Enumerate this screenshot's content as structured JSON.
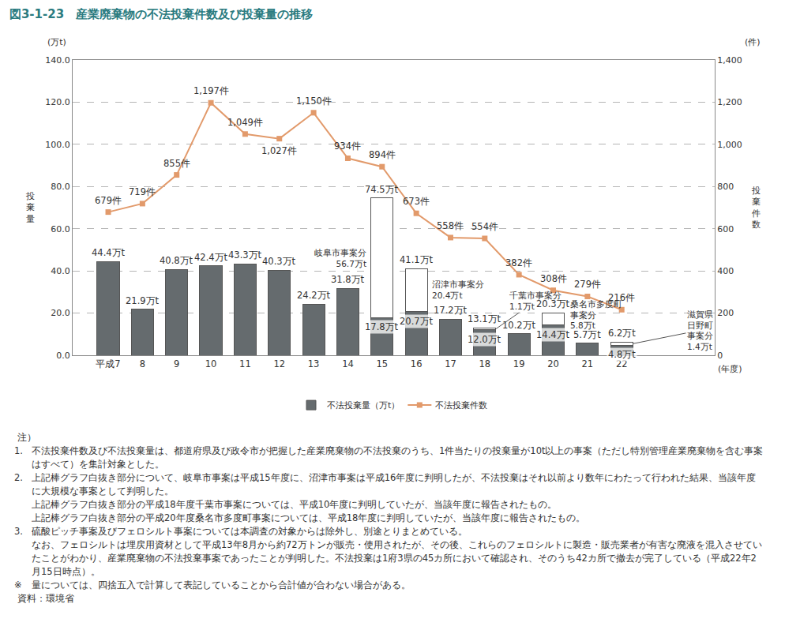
{
  "chart_data": {
    "type": "bar",
    "title": "図3-1-23　産業廃棄物の不法投棄件数及び投棄量の推移",
    "ylabel": "投棄量",
    "y_unit": "(万t)",
    "y2label": "投棄件数",
    "y2_unit": "(件)",
    "x_unit": "(年度)",
    "categories": [
      "平成7",
      "8",
      "9",
      "10",
      "11",
      "12",
      "13",
      "14",
      "15",
      "16",
      "17",
      "18",
      "19",
      "20",
      "21",
      "22"
    ],
    "series": [
      {
        "name": "不法投棄量（万t）",
        "type": "bar",
        "color": "#656b6e",
        "values": [
          44.4,
          21.9,
          40.8,
          42.4,
          43.3,
          40.3,
          24.2,
          31.8,
          17.8,
          20.7,
          17.2,
          12.0,
          10.2,
          14.4,
          5.7,
          4.8
        ],
        "value_labels": [
          "44.4万t",
          "21.9万t",
          "40.8万t",
          "42.4万t",
          "43.3万t",
          "40.3万t",
          "24.2万t",
          "31.8万t",
          "17.8万t",
          "20.7万t",
          "17.2万t",
          "12.0万t",
          "10.2万t",
          "14.4万t",
          "5.7万t",
          "4.8万t"
        ]
      },
      {
        "type": "bar",
        "color": "#ffffff",
        "values": [
          null,
          null,
          null,
          null,
          null,
          null,
          null,
          null,
          56.7,
          20.4,
          null,
          1.1,
          null,
          5.8,
          null,
          1.4
        ],
        "value_labels": [
          null,
          null,
          null,
          null,
          null,
          null,
          null,
          null,
          "56.7万t",
          "20.4万t",
          null,
          "1.1万t",
          null,
          "5.8万t",
          null,
          "1.4万t"
        ],
        "case_labels": [
          null,
          null,
          null,
          null,
          null,
          null,
          null,
          null,
          [
            "岐阜市事案分"
          ],
          [
            "沼津市事案分"
          ],
          null,
          [
            "千葉市事案分"
          ],
          null,
          [
            "桑名市多度町",
            "事案分"
          ],
          null,
          [
            "滋賀県",
            "日野町",
            "事案分"
          ]
        ],
        "total_labels": [
          null,
          null,
          null,
          null,
          null,
          null,
          null,
          null,
          "74.5万t",
          "41.1万t",
          null,
          "13.1万t",
          null,
          "20.3万t",
          null,
          "6.2万t"
        ]
      },
      {
        "name": "不法投棄件数",
        "type": "line",
        "axis": "y2",
        "color": "#e29a6b",
        "marker": "square",
        "values": [
          679,
          719,
          855,
          1197,
          1049,
          1027,
          1150,
          934,
          894,
          673,
          558,
          554,
          382,
          308,
          279,
          216
        ],
        "value_labels": [
          "679件",
          "719件",
          "855件",
          "1,197件",
          "1,049件",
          "1,027件",
          "1,150件",
          "934件",
          "894件",
          "673件",
          "558件",
          "554件",
          "382件",
          "308件",
          "279件",
          "216件"
        ]
      }
    ],
    "ylim": [
      0,
      140
    ],
    "yticks": [
      {
        "value": 0,
        "label": "0.0"
      },
      {
        "value": 20,
        "label": "20.0"
      },
      {
        "value": 40,
        "label": "40.0"
      },
      {
        "value": 60,
        "label": "60.0"
      },
      {
        "value": 80,
        "label": "80.0"
      },
      {
        "value": 100,
        "label": "100.0"
      },
      {
        "value": 120,
        "label": "120.0"
      },
      {
        "value": 140,
        "label": "140.0"
      }
    ],
    "y2lim": [
      0,
      1400
    ],
    "y2ticks": [
      0,
      200,
      400,
      600,
      800,
      {
        "value": 1000,
        "label": "1,000"
      },
      {
        "value": 1200,
        "label": "1,200"
      },
      {
        "value": 1400,
        "label": "1,400"
      }
    ],
    "stacked": true,
    "grid": true,
    "legend": "bottom",
    "data_labels": true
  },
  "notes": {
    "heading": "注）",
    "items": [
      {
        "label": "1.",
        "text": [
          "不法投棄件数及び不法投棄量は、都道府県及び政令市が把握した産業廃棄物の不法投棄のうち、1件当たりの投棄量が10t以上の事案（ただし特別管理産業廃棄物を含む事案はすべて）を集計対象とした。"
        ]
      },
      {
        "label": "2.",
        "text": [
          "上記棒グラフ白抜き部分について、岐阜市事案は平成15年度に、沼津市事案は平成16年度に判明したが、不法投棄はそれ以前より数年にわたって行われた結果、当該年度に大規模な事案として判明した。",
          "上記棒グラフ白抜き部分の平成18年度千葉市事案については、平成10年度に判明していたが、当該年度に報告されたもの。",
          "上記棒グラフ白抜き部分の平成20年度桑名市多度町事案については、平成18年度に判明していたが、当該年度に報告されたもの。"
        ]
      },
      {
        "label": "3.",
        "text": [
          "硫酸ピッチ事案及びフェロシルト事案については本調査の対象からは除外し、別途とりまとめている。",
          "なお、フェロシルトは埋戻用資材として平成13年8月から約72万トンが販売・使用されたが、その後、これらのフェロシルトに製造・販売業者が有害な廃液を混入させていたことがわかり、産業廃棄物の不法投棄事案であったことが判明した。不法投棄は1府3県の45カ所において確認され、そのうち42カ所で撤去が完了している（平成22年2月15日時点）。"
        ]
      }
    ],
    "footnote": {
      "label": "※",
      "text": "量については、四捨五入で計算して表記していることから合計値が合わない場合がある。"
    },
    "source": "資料：環境省"
  }
}
